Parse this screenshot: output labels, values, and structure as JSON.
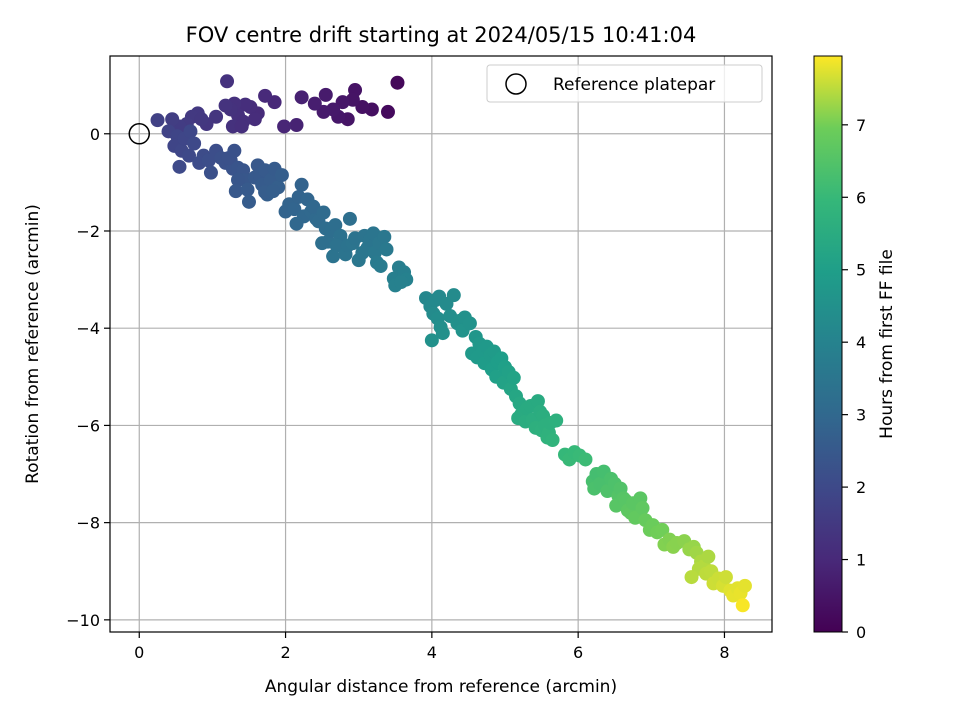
{
  "chart_data": {
    "type": "scatter",
    "title": "FOV centre drift starting at 2024/05/15 10:41:04",
    "xlabel": "Angular distance from reference (arcmin)",
    "ylabel": "Rotation from reference (arcmin)",
    "xlim": [
      -0.4,
      8.65
    ],
    "ylim": [
      -10.25,
      1.6
    ],
    "xticks": [
      0,
      2,
      4,
      6,
      8
    ],
    "yticks": [
      -10,
      -8,
      -6,
      -4,
      -2,
      0
    ],
    "grid": true,
    "legend": {
      "placement": "top-right",
      "entries": [
        "Reference platepar"
      ]
    },
    "colorbar": {
      "label": "Hours from first FF file",
      "colormap": "viridis",
      "range": [
        0,
        7.95
      ],
      "ticks": [
        0,
        1,
        2,
        3,
        4,
        5,
        6,
        7
      ]
    },
    "reference_point": {
      "x": 0,
      "y": 0
    },
    "marker_color_ref": "#000000",
    "grid_color": "#b0b0b0",
    "series": [
      {
        "points": [
          [
            3.53,
            1.05
          ],
          [
            3.4,
            0.45
          ],
          [
            3.18,
            0.5
          ],
          [
            3.05,
            0.55
          ],
          [
            2.95,
            0.9
          ],
          [
            2.92,
            0.7
          ],
          [
            2.85,
            0.3
          ],
          [
            2.72,
            0.35
          ],
          [
            2.78,
            0.65
          ],
          [
            2.65,
            0.5
          ],
          [
            2.55,
            0.8
          ],
          [
            2.52,
            0.45
          ],
          [
            2.4,
            0.62
          ],
          [
            2.22,
            0.75
          ],
          [
            2.15,
            0.18
          ],
          [
            1.98,
            0.15
          ],
          [
            1.85,
            0.65
          ],
          [
            1.72,
            0.78
          ],
          [
            1.62,
            0.42
          ],
          [
            1.52,
            0.55
          ],
          [
            1.58,
            0.3
          ],
          [
            1.45,
            0.6
          ],
          [
            1.35,
            0.38
          ],
          [
            1.42,
            0.25
          ],
          [
            1.3,
            0.62
          ],
          [
            1.25,
            0.5
          ],
          [
            1.18,
            0.58
          ],
          [
            1.2,
            1.08
          ],
          [
            1.28,
            0.15
          ],
          [
            1.4,
            0.15
          ],
          [
            1.05,
            0.35
          ],
          [
            0.92,
            0.2
          ],
          [
            0.8,
            0.42
          ],
          [
            0.72,
            0.35
          ],
          [
            0.85,
            0.3
          ],
          [
            0.65,
            0.2
          ],
          [
            0.55,
            0.15
          ],
          [
            0.45,
            0.3
          ],
          [
            0.25,
            0.28
          ],
          [
            0.4,
            0.05
          ],
          [
            0.52,
            -0.05
          ],
          [
            0.48,
            -0.25
          ],
          [
            0.58,
            -0.35
          ],
          [
            0.62,
            -0.1
          ],
          [
            0.7,
            0.05
          ],
          [
            0.75,
            -0.2
          ],
          [
            0.68,
            -0.45
          ],
          [
            0.88,
            -0.45
          ],
          [
            0.82,
            -0.6
          ],
          [
            0.95,
            -0.55
          ],
          [
            0.55,
            -0.68
          ],
          [
            0.98,
            -0.8
          ],
          [
            1.05,
            -0.35
          ],
          [
            1.12,
            -0.5
          ],
          [
            1.18,
            -0.6
          ],
          [
            1.25,
            -0.55
          ],
          [
            1.28,
            -0.72
          ],
          [
            1.35,
            -0.7
          ],
          [
            1.22,
            -0.5
          ],
          [
            1.3,
            -0.35
          ],
          [
            1.42,
            -0.75
          ],
          [
            1.45,
            -0.95
          ],
          [
            1.35,
            -0.95
          ],
          [
            1.32,
            -1.18
          ],
          [
            1.48,
            -1.15
          ],
          [
            1.5,
            -1.4
          ],
          [
            1.58,
            -0.9
          ],
          [
            1.62,
            -0.65
          ],
          [
            1.65,
            -0.85
          ],
          [
            1.72,
            -0.75
          ],
          [
            1.68,
            -1.05
          ],
          [
            1.75,
            -1.25
          ],
          [
            1.8,
            -0.95
          ],
          [
            1.85,
            -0.72
          ],
          [
            1.9,
            -1.1
          ],
          [
            1.95,
            -0.85
          ],
          [
            1.72,
            -1.2
          ],
          [
            1.83,
            -1.18
          ],
          [
            2.05,
            -1.45
          ],
          [
            2.0,
            -1.6
          ],
          [
            2.12,
            -1.55
          ],
          [
            2.18,
            -1.3
          ],
          [
            2.22,
            -1.05
          ],
          [
            2.25,
            -1.7
          ],
          [
            2.15,
            -1.85
          ],
          [
            2.3,
            -1.35
          ],
          [
            2.35,
            -1.6
          ],
          [
            2.42,
            -1.75
          ],
          [
            2.38,
            -1.5
          ],
          [
            2.45,
            -1.8
          ],
          [
            2.52,
            -1.62
          ],
          [
            2.55,
            -1.95
          ],
          [
            2.58,
            -2.22
          ],
          [
            2.5,
            -2.25
          ],
          [
            2.62,
            -2.0
          ],
          [
            2.68,
            -1.88
          ],
          [
            2.75,
            -2.1
          ],
          [
            2.7,
            -2.3
          ],
          [
            2.65,
            -2.52
          ],
          [
            2.82,
            -2.48
          ],
          [
            2.85,
            -2.3
          ],
          [
            2.88,
            -1.75
          ],
          [
            2.92,
            -2.25
          ],
          [
            2.95,
            -2.15
          ],
          [
            3.0,
            -2.6
          ],
          [
            3.05,
            -2.45
          ],
          [
            3.08,
            -2.1
          ],
          [
            3.12,
            -2.35
          ],
          [
            3.15,
            -2.18
          ],
          [
            3.2,
            -2.05
          ],
          [
            3.22,
            -2.45
          ],
          [
            3.25,
            -2.65
          ],
          [
            3.3,
            -2.72
          ],
          [
            3.28,
            -2.25
          ],
          [
            3.35,
            -2.12
          ],
          [
            3.38,
            -2.38
          ],
          [
            3.48,
            -2.98
          ],
          [
            3.5,
            -3.12
          ],
          [
            3.55,
            -2.75
          ],
          [
            3.62,
            -2.85
          ],
          [
            3.65,
            -3.0
          ],
          [
            3.58,
            -3.05
          ],
          [
            3.92,
            -3.38
          ],
          [
            3.98,
            -3.55
          ],
          [
            4.02,
            -3.7
          ],
          [
            4.05,
            -3.42
          ],
          [
            4.1,
            -3.35
          ],
          [
            4.08,
            -3.8
          ],
          [
            4.12,
            -3.98
          ],
          [
            4.0,
            -4.25
          ],
          [
            4.15,
            -4.1
          ],
          [
            4.2,
            -3.5
          ],
          [
            4.25,
            -3.75
          ],
          [
            4.3,
            -3.32
          ],
          [
            4.35,
            -3.9
          ],
          [
            4.38,
            -3.85
          ],
          [
            4.42,
            -4.05
          ],
          [
            4.45,
            -3.78
          ],
          [
            4.52,
            -3.9
          ],
          [
            4.55,
            -4.52
          ],
          [
            4.6,
            -4.18
          ],
          [
            4.65,
            -4.32
          ],
          [
            4.62,
            -4.6
          ],
          [
            4.7,
            -4.48
          ],
          [
            4.75,
            -4.38
          ],
          [
            4.72,
            -4.72
          ],
          [
            4.8,
            -4.55
          ],
          [
            4.82,
            -4.85
          ],
          [
            4.85,
            -4.48
          ],
          [
            4.9,
            -4.7
          ],
          [
            4.88,
            -5.0
          ],
          [
            4.95,
            -4.62
          ],
          [
            5.0,
            -4.8
          ],
          [
            4.98,
            -5.12
          ],
          [
            5.05,
            -4.9
          ],
          [
            5.08,
            -5.25
          ],
          [
            5.12,
            -5.02
          ],
          [
            5.15,
            -5.4
          ],
          [
            5.2,
            -5.55
          ],
          [
            5.18,
            -5.85
          ],
          [
            5.22,
            -5.78
          ],
          [
            5.28,
            -5.92
          ],
          [
            5.3,
            -5.65
          ],
          [
            5.35,
            -5.6
          ],
          [
            5.38,
            -5.88
          ],
          [
            5.42,
            -6.05
          ],
          [
            5.45,
            -5.5
          ],
          [
            5.48,
            -5.72
          ],
          [
            5.5,
            -6.1
          ],
          [
            5.52,
            -5.8
          ],
          [
            5.55,
            -6.0
          ],
          [
            5.58,
            -6.25
          ],
          [
            5.6,
            -6.15
          ],
          [
            5.62,
            -5.95
          ],
          [
            5.7,
            -5.9
          ],
          [
            5.65,
            -6.3
          ],
          [
            5.82,
            -6.6
          ],
          [
            5.88,
            -6.7
          ],
          [
            5.95,
            -6.55
          ],
          [
            6.02,
            -6.62
          ],
          [
            6.1,
            -6.7
          ],
          [
            6.2,
            -7.15
          ],
          [
            6.25,
            -7.0
          ],
          [
            6.22,
            -7.3
          ],
          [
            6.3,
            -7.2
          ],
          [
            6.35,
            -6.95
          ],
          [
            6.4,
            -7.35
          ],
          [
            6.45,
            -7.1
          ],
          [
            6.5,
            -7.2
          ],
          [
            6.55,
            -7.45
          ],
          [
            6.52,
            -7.65
          ],
          [
            6.58,
            -7.3
          ],
          [
            6.62,
            -7.5
          ],
          [
            6.65,
            -7.55
          ],
          [
            6.68,
            -7.75
          ],
          [
            6.72,
            -7.8
          ],
          [
            6.75,
            -7.6
          ],
          [
            6.78,
            -7.9
          ],
          [
            6.85,
            -7.5
          ],
          [
            6.88,
            -7.7
          ],
          [
            6.92,
            -7.95
          ],
          [
            6.98,
            -8.15
          ],
          [
            7.02,
            -8.05
          ],
          [
            7.08,
            -8.2
          ],
          [
            7.15,
            -8.15
          ],
          [
            7.18,
            -8.45
          ],
          [
            7.25,
            -8.35
          ],
          [
            7.3,
            -8.5
          ],
          [
            7.35,
            -8.42
          ],
          [
            7.45,
            -8.38
          ],
          [
            7.52,
            -8.55
          ],
          [
            7.58,
            -8.5
          ],
          [
            7.62,
            -8.62
          ],
          [
            7.68,
            -8.8
          ],
          [
            7.72,
            -8.9
          ],
          [
            7.78,
            -8.7
          ],
          [
            7.65,
            -8.95
          ],
          [
            7.55,
            -9.12
          ],
          [
            7.75,
            -9.05
          ],
          [
            7.82,
            -9.0
          ],
          [
            7.85,
            -9.25
          ],
          [
            7.92,
            -9.15
          ],
          [
            7.98,
            -9.3
          ],
          [
            8.02,
            -9.12
          ],
          [
            8.08,
            -9.4
          ],
          [
            8.12,
            -9.5
          ],
          [
            8.18,
            -9.35
          ],
          [
            8.22,
            -9.45
          ],
          [
            8.25,
            -9.7
          ],
          [
            8.28,
            -9.3
          ]
        ]
      }
    ]
  }
}
